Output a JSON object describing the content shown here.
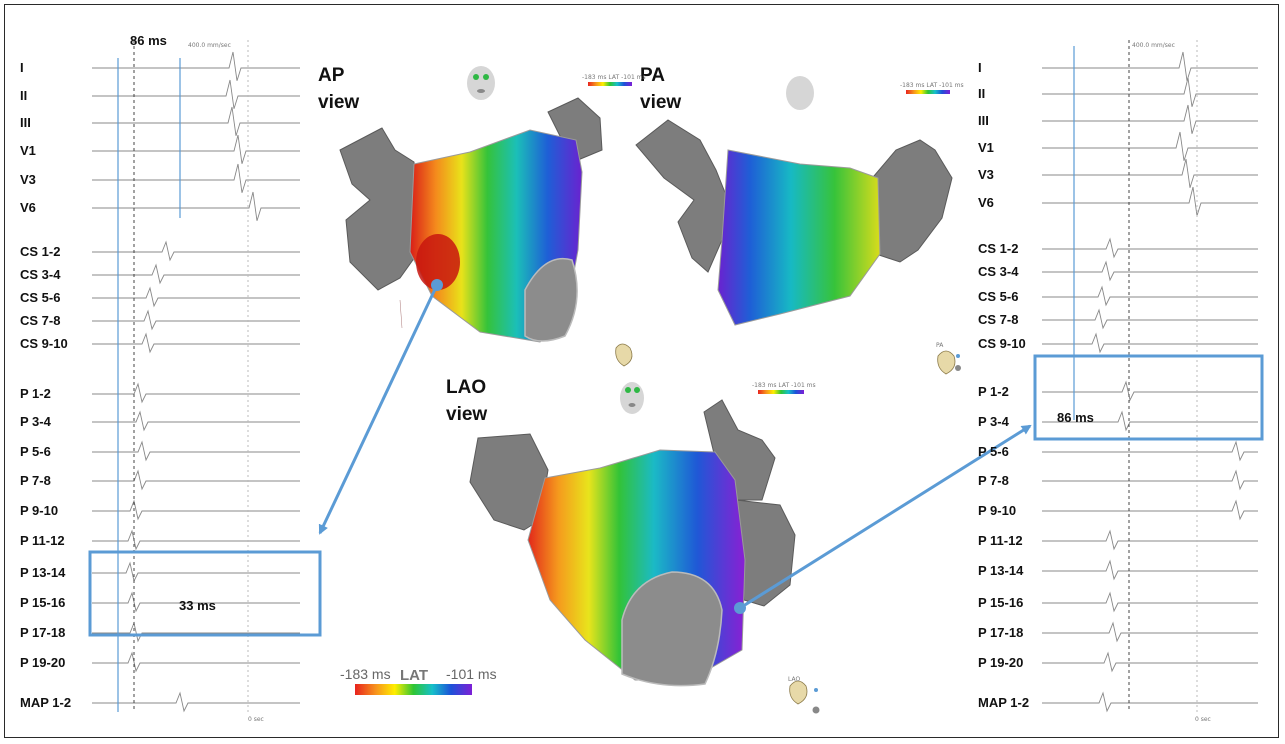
{
  "left_panel": {
    "leads": [
      "I",
      "II",
      "III",
      "V1",
      "V3",
      "V6",
      "CS 1-2",
      "CS 3-4",
      "CS 5-6",
      "CS 7-8",
      "CS 9-10",
      "P 1-2",
      "P 3-4",
      "P 5-6",
      "P 7-8",
      "P 9-10",
      "P 11-12",
      "P 13-14",
      "P 15-16",
      "P 17-18",
      "P 19-20",
      "MAP 1-2"
    ],
    "interval_top": "86 ms",
    "interval_box": "33 ms",
    "sweep_speed": "400.0 mm/sec",
    "time_marker": "0 sec"
  },
  "right_panel": {
    "leads": [
      "I",
      "II",
      "III",
      "V1",
      "V3",
      "V6",
      "CS 1-2",
      "CS 3-4",
      "CS 5-6",
      "CS 7-8",
      "CS 9-10",
      "P 1-2",
      "P 3-4",
      "P 5-6",
      "P 7-8",
      "P 9-10",
      "P 11-12",
      "P 13-14",
      "P 15-16",
      "P 17-18",
      "P 19-20",
      "MAP 1-2"
    ],
    "interval_box": "86 ms",
    "sweep_speed": "400.0 mm/sec",
    "time_marker": "0 sec"
  },
  "maps": {
    "ap": {
      "line1": "AP",
      "line2": "view"
    },
    "pa": {
      "line1": "PA",
      "line2": "view"
    },
    "lao": {
      "line1": "LAO",
      "line2": "view"
    },
    "mini_bar_labels": [
      "-183 ms",
      "LAT",
      "-101 ms"
    ],
    "lao_badge": "LAO",
    "pa_badge": "PA"
  },
  "colorbar": {
    "min_label": "-183 ms",
    "title": "LAT",
    "max_label": "-101 ms",
    "colors": [
      "#e8231e",
      "#f7941d",
      "#ffee00",
      "#2fc533",
      "#16c0c9",
      "#1c52d8",
      "#7d1fd6"
    ]
  }
}
